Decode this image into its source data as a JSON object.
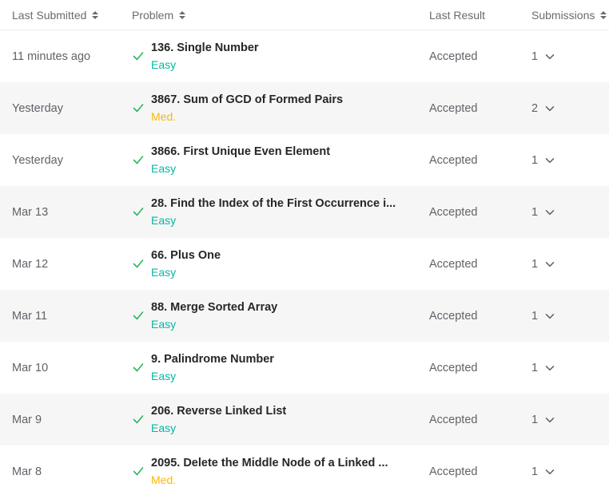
{
  "header": {
    "last_submitted": "Last Submitted",
    "problem": "Problem",
    "last_result": "Last Result",
    "submissions": "Submissions"
  },
  "colors": {
    "easy": "#00b8a3",
    "medium": "#ffb800",
    "accepted_check": "#2db55d"
  },
  "rows": [
    {
      "date": "11 minutes ago",
      "title": "136. Single Number",
      "difficulty": "Easy",
      "level": "easy",
      "result": "Accepted",
      "submissions": "1"
    },
    {
      "date": "Yesterday",
      "title": "3867. Sum of GCD of Formed Pairs",
      "difficulty": "Med.",
      "level": "med",
      "result": "Accepted",
      "submissions": "2"
    },
    {
      "date": "Yesterday",
      "title": "3866. First Unique Even Element",
      "difficulty": "Easy",
      "level": "easy",
      "result": "Accepted",
      "submissions": "1"
    },
    {
      "date": "Mar 13",
      "title": "28. Find the Index of the First Occurrence i...",
      "difficulty": "Easy",
      "level": "easy",
      "result": "Accepted",
      "submissions": "1"
    },
    {
      "date": "Mar 12",
      "title": "66. Plus One",
      "difficulty": "Easy",
      "level": "easy",
      "result": "Accepted",
      "submissions": "1"
    },
    {
      "date": "Mar 11",
      "title": "88. Merge Sorted Array",
      "difficulty": "Easy",
      "level": "easy",
      "result": "Accepted",
      "submissions": "1"
    },
    {
      "date": "Mar 10",
      "title": "9. Palindrome Number",
      "difficulty": "Easy",
      "level": "easy",
      "result": "Accepted",
      "submissions": "1"
    },
    {
      "date": "Mar 9",
      "title": "206. Reverse Linked List",
      "difficulty": "Easy",
      "level": "easy",
      "result": "Accepted",
      "submissions": "1"
    },
    {
      "date": "Mar 8",
      "title": "2095. Delete the Middle Node of a Linked ...",
      "difficulty": "Med.",
      "level": "med",
      "result": "Accepted",
      "submissions": "1"
    }
  ]
}
